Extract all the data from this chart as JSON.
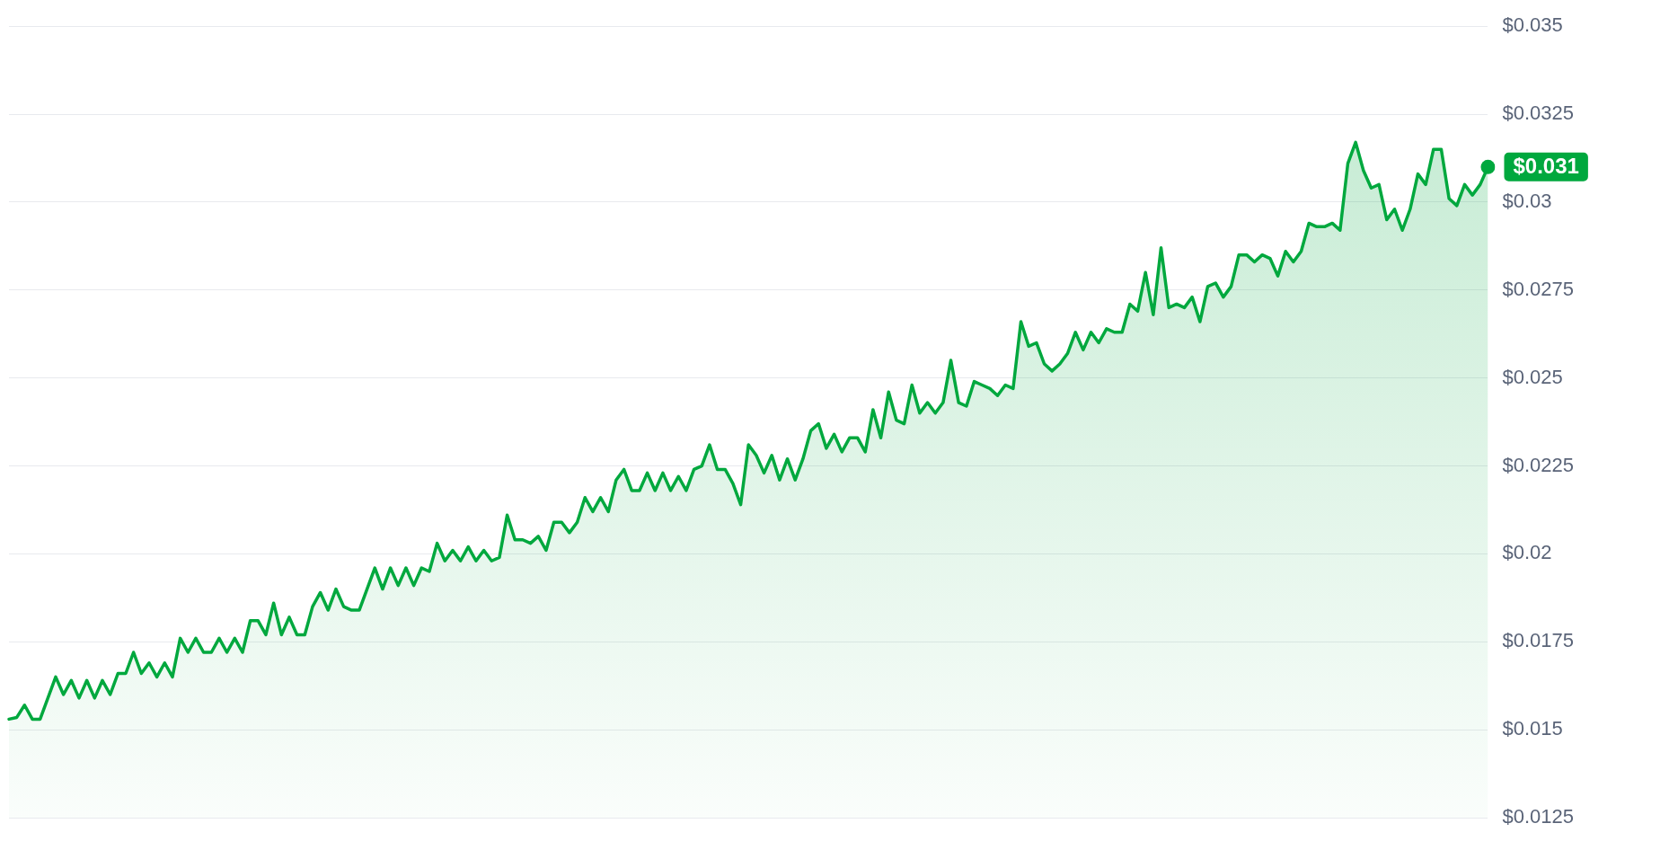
{
  "chart_data": {
    "type": "area",
    "categories": [
      null,
      null,
      null,
      null,
      null,
      null,
      null,
      null,
      null,
      null,
      null,
      null,
      null,
      null,
      null,
      null,
      null,
      null,
      null,
      null,
      null,
      null,
      null,
      null,
      null,
      null,
      null,
      null,
      null,
      null,
      null,
      null,
      null,
      null,
      null,
      null,
      null,
      null,
      null,
      null,
      null,
      null,
      null,
      null,
      null,
      null,
      null,
      null,
      null,
      null,
      null,
      null,
      null,
      null,
      null,
      null,
      null,
      null,
      null,
      null,
      null,
      null,
      null,
      null,
      null,
      null,
      null,
      null,
      null,
      null,
      null,
      null,
      null,
      null,
      null,
      null,
      null,
      null,
      null,
      null,
      null,
      null,
      null,
      null,
      null,
      null,
      null,
      null,
      null,
      null,
      null,
      null,
      null,
      null,
      null,
      null,
      null,
      null,
      null,
      null,
      null,
      null,
      null,
      null,
      null,
      null,
      null,
      null,
      null,
      null,
      null,
      null,
      null,
      null,
      null,
      null,
      null,
      null,
      null,
      null,
      null,
      null,
      null,
      null,
      null,
      null,
      null,
      null,
      null,
      null,
      null,
      null,
      null,
      null,
      null,
      null,
      null,
      null,
      null,
      null,
      null,
      null,
      null,
      null,
      null,
      null,
      null,
      null,
      null,
      null,
      null,
      null,
      null,
      null,
      null,
      null,
      null,
      null,
      null,
      null,
      null,
      null,
      null,
      null,
      null,
      null,
      null,
      null,
      null,
      null,
      null,
      null,
      null,
      null,
      null,
      null,
      null,
      null,
      null,
      null,
      null,
      null,
      null,
      null,
      null,
      null,
      null,
      null,
      null,
      null,
      null
    ],
    "series": [
      {
        "color": "#00a83e",
        "values": [
          0.0153,
          0.01535,
          0.0157,
          0.0153,
          0.0153,
          0.0159,
          0.0165,
          0.016,
          0.0164,
          0.0159,
          0.0164,
          0.0159,
          0.0164,
          0.016,
          0.0166,
          0.0166,
          0.0172,
          0.0166,
          0.0169,
          0.0165,
          0.0169,
          0.0165,
          0.0176,
          0.0172,
          0.0176,
          0.0172,
          0.0172,
          0.0176,
          0.0172,
          0.0176,
          0.0172,
          0.0181,
          0.0181,
          0.0177,
          0.0186,
          0.0177,
          0.0182,
          0.0177,
          0.0177,
          0.0185,
          0.0189,
          0.0184,
          0.019,
          0.0185,
          0.0184,
          0.0184,
          0.019,
          0.0196,
          0.019,
          0.0196,
          0.0191,
          0.0196,
          0.0191,
          0.0196,
          0.0195,
          0.0203,
          0.0198,
          0.0201,
          0.0198,
          0.0202,
          0.0198,
          0.0201,
          0.0198,
          0.0199,
          0.0211,
          0.0204,
          0.0204,
          0.0203,
          0.0205,
          0.0201,
          0.0209,
          0.0209,
          0.0206,
          0.0209,
          0.0216,
          0.0212,
          0.0216,
          0.0212,
          0.0221,
          0.0224,
          0.0218,
          0.0218,
          0.0223,
          0.0218,
          0.0223,
          0.0218,
          0.0222,
          0.0218,
          0.0224,
          0.0225,
          0.0231,
          0.0224,
          0.0224,
          0.022,
          0.0214,
          0.0231,
          0.0228,
          0.0223,
          0.0228,
          0.0221,
          0.0227,
          0.0221,
          0.0227,
          0.0235,
          0.0237,
          0.023,
          0.0234,
          0.0229,
          0.0233,
          0.0233,
          0.0229,
          0.0241,
          0.0233,
          0.0246,
          0.0238,
          0.0237,
          0.0248,
          0.024,
          0.0243,
          0.024,
          0.0243,
          0.0255,
          0.0243,
          0.0242,
          0.0249,
          0.0248,
          0.0247,
          0.0245,
          0.0248,
          0.0247,
          0.0266,
          0.0259,
          0.026,
          0.0254,
          0.0252,
          0.0254,
          0.0257,
          0.0263,
          0.0258,
          0.0263,
          0.026,
          0.0264,
          0.0263,
          0.0263,
          0.0271,
          0.0269,
          0.028,
          0.0268,
          0.0287,
          0.027,
          0.0271,
          0.027,
          0.0273,
          0.0266,
          0.0276,
          0.0277,
          0.0273,
          0.0276,
          0.0285,
          0.0285,
          0.0283,
          0.0285,
          0.0284,
          0.0279,
          0.0286,
          0.0283,
          0.0286,
          0.0294,
          0.0293,
          0.0293,
          0.0294,
          0.0292,
          0.0311,
          0.0317,
          0.0309,
          0.0304,
          0.0305,
          0.0295,
          0.0298,
          0.0292,
          0.0298,
          0.0308,
          0.0305,
          0.0315,
          0.0315,
          0.0301,
          0.0299,
          0.0305,
          0.0302,
          0.0305,
          0.031
        ]
      }
    ],
    "ylim": [
      0.0125,
      0.035
    ],
    "yticks": [
      {
        "value": 0.0125,
        "label": "$0.0125"
      },
      {
        "value": 0.015,
        "label": "$0.015"
      },
      {
        "value": 0.0175,
        "label": "$0.0175"
      },
      {
        "value": 0.02,
        "label": "$0.02"
      },
      {
        "value": 0.0225,
        "label": "$0.0225"
      },
      {
        "value": 0.025,
        "label": "$0.025"
      },
      {
        "value": 0.0275,
        "label": "$0.0275"
      },
      {
        "value": 0.03,
        "label": "$0.03"
      },
      {
        "value": 0.0325,
        "label": "$0.0325"
      },
      {
        "value": 0.035,
        "label": "$0.035"
      }
    ],
    "grid": "y",
    "tick_labels": "y",
    "annotations": [
      "$0.031"
    ]
  }
}
